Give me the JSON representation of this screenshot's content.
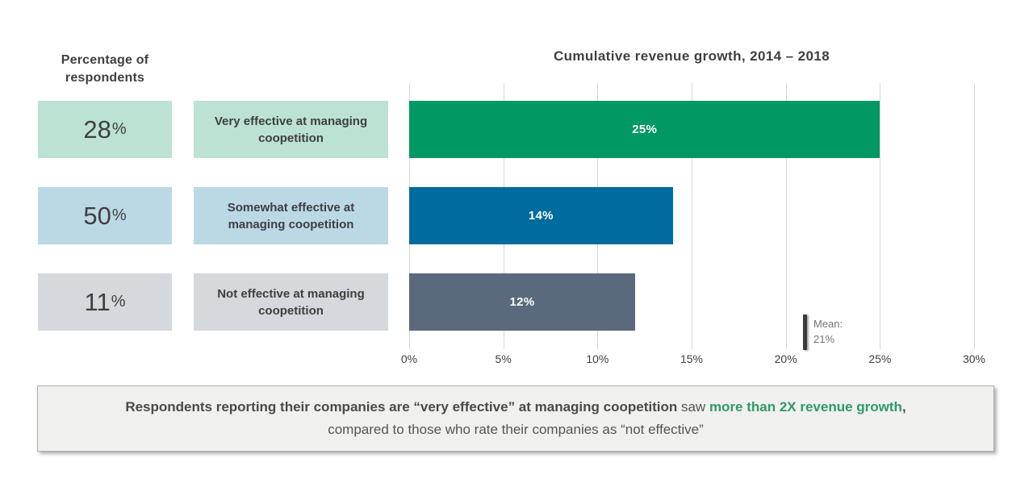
{
  "left_column": {
    "header_line1": "Percentage of",
    "header_line2": "respondents"
  },
  "chart_title": "Cumulative revenue growth, 2014 – 2018",
  "rows": [
    {
      "pct_value": "28",
      "pct_unit": "%",
      "label": "Very effective at managing coopetition",
      "bar_label": "25%",
      "box_color": "#BCE2D4",
      "bar_color": "#009963"
    },
    {
      "pct_value": "50",
      "pct_unit": "%",
      "label": "Somewhat effective at managing coopetition",
      "bar_label": "14%",
      "box_color": "#BBD8E5",
      "bar_color": "#006B9E"
    },
    {
      "pct_value": "11",
      "pct_unit": "%",
      "label": "Not effective at managing coopetition",
      "bar_label": "12%",
      "box_color": "#D5D8DC",
      "bar_color": "#5A6A7C"
    }
  ],
  "chart_data": {
    "type": "bar",
    "orientation": "horizontal",
    "title": "Cumulative revenue growth, 2014 – 2018",
    "categories": [
      "Very effective at managing coopetition",
      "Somewhat effective at managing coopetition",
      "Not effective at managing coopetition"
    ],
    "series": [
      {
        "name": "Cumulative revenue growth 2014–2018 (%)",
        "values": [
          25,
          14,
          12
        ]
      },
      {
        "name": "Percentage of respondents (%)",
        "values": [
          28,
          50,
          11
        ]
      }
    ],
    "values": [
      25,
      14,
      12
    ],
    "bar_labels": [
      "25%",
      "14%",
      "12%"
    ],
    "x_ticks": [
      "0%",
      "5%",
      "10%",
      "15%",
      "20%",
      "25%",
      "30%"
    ],
    "xlim": [
      0,
      30
    ],
    "grid": true,
    "legend": "none",
    "mean": {
      "value": 21,
      "label_line1": "Mean:",
      "label_line2": "21%"
    }
  },
  "callout": {
    "bold_dark": "Respondents reporting their companies are “very effective” at managing coopetition",
    "regular_mid": " saw ",
    "bold_green": "more than 2X revenue growth",
    "trailing": ",",
    "line2": "compared to those who rate their companies as “not effective”"
  },
  "colors": {
    "green_bar": "#009963",
    "blue_bar": "#006B9E",
    "slate_bar": "#5A6A7C",
    "light_green_box": "#BCE2D4",
    "light_blue_box": "#BBD8E5",
    "light_gray_box": "#D5D8DC",
    "green_text": "#2F9A64",
    "text_dark": "#3F3F3F",
    "gridline": "#D9D9D9"
  }
}
